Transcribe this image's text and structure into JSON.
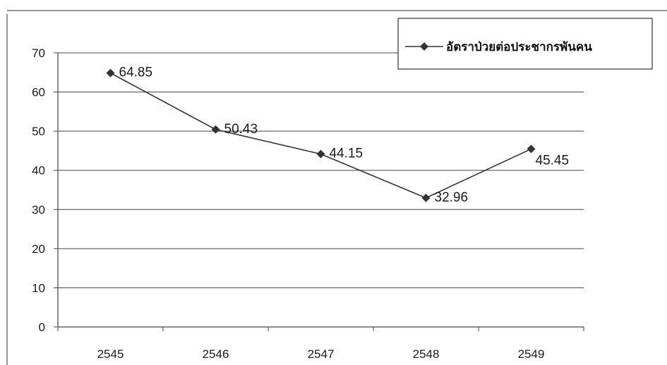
{
  "chart_data": {
    "type": "line",
    "title": "",
    "xlabel": "",
    "ylabel": "",
    "categories": [
      "2545",
      "2546",
      "2547",
      "2548",
      "2549"
    ],
    "series": [
      {
        "name": "อัตราป่วยต่อประชากรพันคน",
        "values": [
          64.85,
          50.43,
          44.15,
          32.96,
          45.45
        ],
        "labels": [
          "64.85",
          "50.43",
          "44.15",
          "32.96",
          "45.45"
        ]
      }
    ],
    "ylim": [
      0,
      70
    ],
    "yticks": [
      "0",
      "10",
      "20",
      "30",
      "40",
      "50",
      "60",
      "70"
    ],
    "grid": true,
    "legend_position": "top-right",
    "line_color": "#333333",
    "marker": "diamond"
  }
}
